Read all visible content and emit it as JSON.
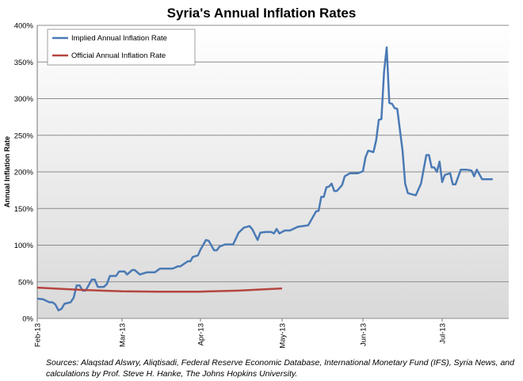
{
  "chart_data": {
    "type": "line",
    "title": "Syria's Annual Inflation Rates",
    "xlabel": "",
    "ylabel": "Annual Inflation Rate",
    "ylim": [
      0,
      400
    ],
    "yticks": [
      "0%",
      "50%",
      "100%",
      "150%",
      "200%",
      "250%",
      "300%",
      "350%",
      "400%"
    ],
    "xticks": [
      {
        "label": "Feb-13",
        "date": "2013-02-01"
      },
      {
        "label": "Mar-13",
        "date": "2013-03-01"
      },
      {
        "label": "Apr-13",
        "date": "2013-04-01"
      },
      {
        "label": "May-13",
        "date": "2013-05-01"
      },
      {
        "label": "Jun-13",
        "date": "2013-06-01"
      },
      {
        "label": "Jul-13",
        "date": "2013-07-01"
      }
    ],
    "xlim": [
      "2013-02-01",
      "2013-07-26"
    ],
    "grid": true,
    "legend_position": "top-left",
    "series": [
      {
        "name": "Implied Annual Inflation Rate",
        "color": "#4a7ab5",
        "points": [
          [
            "2013-02-01",
            27
          ],
          [
            "2013-02-03",
            26
          ],
          [
            "2013-02-05",
            22
          ],
          [
            "2013-02-06",
            22
          ],
          [
            "2013-02-07",
            19
          ],
          [
            "2013-02-08",
            11
          ],
          [
            "2013-02-09",
            13
          ],
          [
            "2013-02-10",
            20
          ],
          [
            "2013-02-12",
            22
          ],
          [
            "2013-02-13",
            28
          ],
          [
            "2013-02-14",
            45
          ],
          [
            "2013-02-15",
            45
          ],
          [
            "2013-02-16",
            38
          ],
          [
            "2013-02-17",
            38
          ],
          [
            "2013-02-19",
            53
          ],
          [
            "2013-02-20",
            53
          ],
          [
            "2013-02-21",
            43
          ],
          [
            "2013-02-23",
            43
          ],
          [
            "2013-02-24",
            47
          ],
          [
            "2013-02-25",
            58
          ],
          [
            "2013-02-27",
            58
          ],
          [
            "2013-02-28",
            64
          ],
          [
            "2013-03-02",
            64
          ],
          [
            "2013-03-03",
            60
          ],
          [
            "2013-03-05",
            66
          ],
          [
            "2013-03-06",
            66
          ],
          [
            "2013-03-08",
            60
          ],
          [
            "2013-03-11",
            63
          ],
          [
            "2013-03-14",
            63
          ],
          [
            "2013-03-16",
            68
          ],
          [
            "2013-03-21",
            68
          ],
          [
            "2013-03-23",
            71
          ],
          [
            "2013-03-24",
            71
          ],
          [
            "2013-03-27",
            78
          ],
          [
            "2013-03-28",
            78
          ],
          [
            "2013-03-29",
            84
          ],
          [
            "2013-03-31",
            86
          ],
          [
            "2013-04-01",
            94
          ],
          [
            "2013-04-03",
            107
          ],
          [
            "2013-04-04",
            106
          ],
          [
            "2013-04-06",
            93
          ],
          [
            "2013-04-07",
            93
          ],
          [
            "2013-04-08",
            98
          ],
          [
            "2013-04-10",
            101
          ],
          [
            "2013-04-13",
            101
          ],
          [
            "2013-04-15",
            117
          ],
          [
            "2013-04-17",
            124
          ],
          [
            "2013-04-18",
            125
          ],
          [
            "2013-04-19",
            126
          ],
          [
            "2013-04-20",
            122
          ],
          [
            "2013-04-22",
            107
          ],
          [
            "2013-04-23",
            117
          ],
          [
            "2013-04-25",
            118
          ],
          [
            "2013-04-27",
            118
          ],
          [
            "2013-04-28",
            116
          ],
          [
            "2013-04-29",
            122
          ],
          [
            "2013-04-30",
            116
          ],
          [
            "2013-05-02",
            120
          ],
          [
            "2013-05-04",
            120
          ],
          [
            "2013-05-07",
            125
          ],
          [
            "2013-05-09",
            126
          ],
          [
            "2013-05-11",
            127
          ],
          [
            "2013-05-14",
            146
          ],
          [
            "2013-05-15",
            147
          ],
          [
            "2013-05-16",
            166
          ],
          [
            "2013-05-17",
            166
          ],
          [
            "2013-05-18",
            179
          ],
          [
            "2013-05-19",
            180
          ],
          [
            "2013-05-20",
            184
          ],
          [
            "2013-05-21",
            174
          ],
          [
            "2013-05-22",
            174
          ],
          [
            "2013-05-24",
            182
          ],
          [
            "2013-05-25",
            194
          ],
          [
            "2013-05-27",
            198
          ],
          [
            "2013-05-30",
            198
          ],
          [
            "2013-06-01",
            201
          ],
          [
            "2013-06-02",
            220
          ],
          [
            "2013-06-03",
            229
          ],
          [
            "2013-06-05",
            227
          ],
          [
            "2013-06-06",
            243
          ],
          [
            "2013-06-07",
            271
          ],
          [
            "2013-06-08",
            272
          ],
          [
            "2013-06-09",
            337
          ],
          [
            "2013-06-10",
            370
          ],
          [
            "2013-06-11",
            294
          ],
          [
            "2013-06-12",
            293
          ],
          [
            "2013-06-13",
            287
          ],
          [
            "2013-06-14",
            286
          ],
          [
            "2013-06-16",
            229
          ],
          [
            "2013-06-17",
            184
          ],
          [
            "2013-06-18",
            171
          ],
          [
            "2013-06-19",
            170
          ],
          [
            "2013-06-21",
            168
          ],
          [
            "2013-06-23",
            184
          ],
          [
            "2013-06-25",
            223
          ],
          [
            "2013-06-26",
            223
          ],
          [
            "2013-06-27",
            206
          ],
          [
            "2013-06-28",
            206
          ],
          [
            "2013-06-29",
            200
          ],
          [
            "2013-06-30",
            214
          ],
          [
            "2013-07-01",
            186
          ],
          [
            "2013-07-02",
            196
          ],
          [
            "2013-07-04",
            198
          ],
          [
            "2013-07-05",
            183
          ],
          [
            "2013-07-06",
            183
          ],
          [
            "2013-07-08",
            203
          ],
          [
            "2013-07-10",
            203
          ],
          [
            "2013-07-12",
            202
          ],
          [
            "2013-07-13",
            194
          ],
          [
            "2013-07-14",
            203
          ],
          [
            "2013-07-16",
            190
          ],
          [
            "2013-07-20",
            190
          ]
        ]
      },
      {
        "name": "Official Annual Inflation Rate",
        "color": "#b5453f",
        "points": [
          [
            "2013-02-01",
            42
          ],
          [
            "2013-02-15",
            39
          ],
          [
            "2013-03-01",
            37
          ],
          [
            "2013-03-15",
            36.5
          ],
          [
            "2013-04-01",
            36.5
          ],
          [
            "2013-04-15",
            38
          ],
          [
            "2013-05-01",
            41
          ]
        ]
      }
    ]
  },
  "source_note": "Sources: Alaqstad Alswry, Aliqtisadi, Federal Reserve Economic Database, International Monetary Fund (IFS), Syria News, and calculations by Prof. Steve H. Hanke, The Johns Hopkins University."
}
